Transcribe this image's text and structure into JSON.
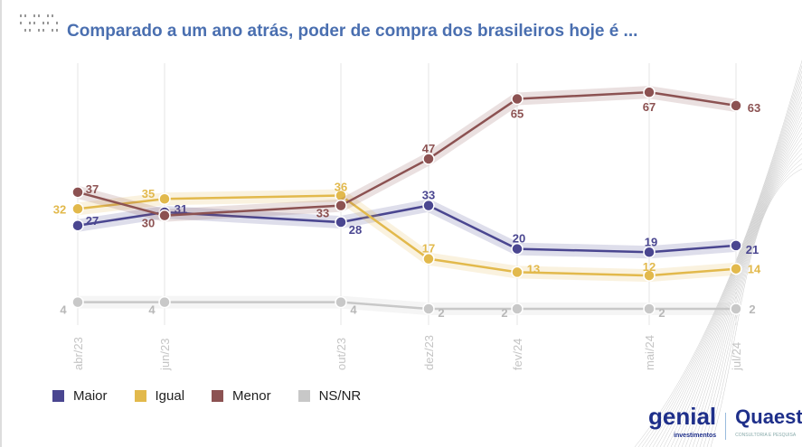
{
  "title": "Comparado a um ano atrás, poder de compra dos brasileiros hoje é ...",
  "logos": {
    "genial": "genial",
    "genial_sub": "investimentos",
    "quaest": "Quaest",
    "quaest_sub": "CONSULTORIA E PESQUISA"
  },
  "chart_data": {
    "type": "line",
    "categories": [
      "abr/23",
      "jun/23",
      "out/23",
      "dez/23",
      "fev/24",
      "mai/24",
      "jul/24"
    ],
    "series": [
      {
        "name": "Maior",
        "color": "#4a4690",
        "values": [
          27,
          31,
          28,
          33,
          20,
          19,
          21
        ]
      },
      {
        "name": "Igual",
        "color": "#e2b94c",
        "values": [
          32,
          35,
          36,
          17,
          13,
          12,
          14
        ]
      },
      {
        "name": "Menor",
        "color": "#8c5252",
        "values": [
          37,
          30,
          33,
          47,
          65,
          67,
          63
        ]
      },
      {
        "name": "NS/NR",
        "color": "#c8c8c8",
        "values": [
          4,
          4,
          4,
          2,
          2,
          2,
          2
        ]
      }
    ],
    "legend_position": "bottom-left",
    "grid": "vertical"
  }
}
